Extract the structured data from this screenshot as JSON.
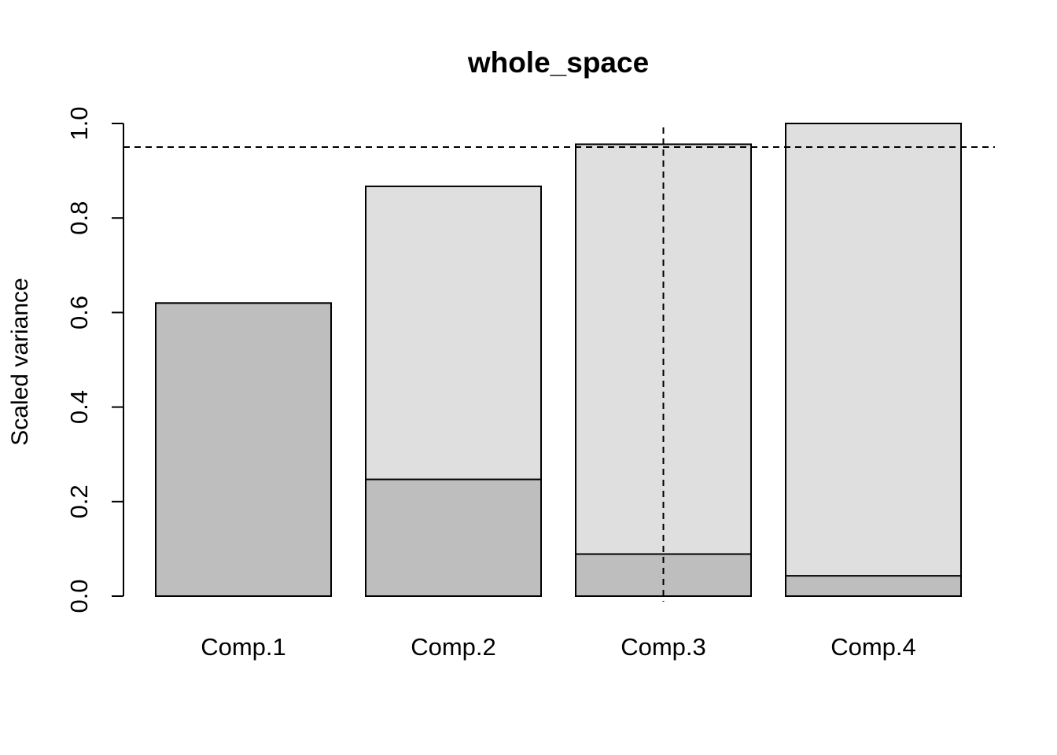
{
  "chart_data": {
    "type": "bar",
    "title": "whole_space",
    "xlabel": "",
    "ylabel": "Scaled variance",
    "ylim": [
      0,
      1.0
    ],
    "y_ticks": [
      "0.0",
      "0.2",
      "0.4",
      "0.6",
      "0.8",
      "1.0"
    ],
    "categories": [
      "Comp.1",
      "Comp.2",
      "Comp.3",
      "Comp.4"
    ],
    "series": [
      {
        "values": [
          0.62,
          0.247,
          0.089,
          0.043
        ]
      },
      {
        "values": [
          0.62,
          0.867,
          0.956,
          1.0
        ]
      }
    ],
    "reference_lines": {
      "horizontal_y": 0.95,
      "vertical_at_category": "Comp.3"
    },
    "grid": false,
    "colors": {
      "individual": "#bebebe",
      "cumulative": "#dfdfdf",
      "stroke": "#000000"
    }
  }
}
